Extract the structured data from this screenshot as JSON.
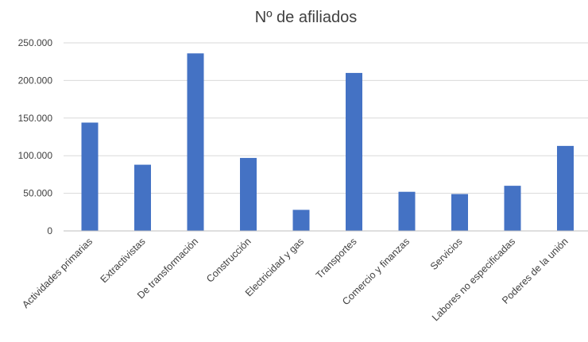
{
  "chart_data": {
    "type": "bar",
    "title": "Nº de afiliados",
    "xlabel": "",
    "ylabel": "",
    "ylim": [
      0,
      250000
    ],
    "yticks": [
      0,
      50000,
      100000,
      150000,
      200000,
      250000
    ],
    "ytick_labels": [
      "0",
      "50.000",
      "100.000",
      "150.000",
      "200.000",
      "250.000"
    ],
    "grid": true,
    "legend": "none",
    "bar_color": "#4472c4",
    "categories": [
      "Actividades primarias",
      "Extractivistas",
      "De transformación",
      "Construcción",
      "Electricidad y gas",
      "Transportes",
      "Comercio y finanzas",
      "Servicios",
      "Labores no especificadas",
      "Poderes de la unión"
    ],
    "series": [
      {
        "values": [
          144000,
          88000,
          236000,
          97000,
          28000,
          210000,
          52000,
          49000,
          60000,
          113000
        ]
      }
    ]
  }
}
